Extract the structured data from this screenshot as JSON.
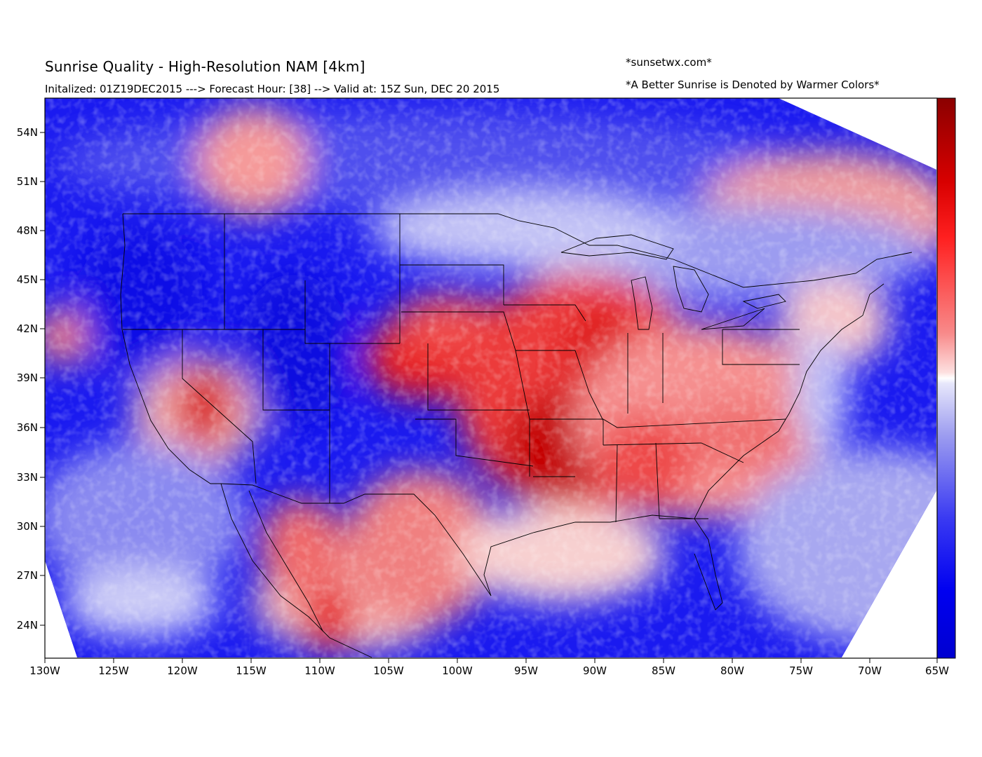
{
  "header": {
    "title": "Sunrise Quality - High-Resolution NAM [4km]",
    "subtitle": "Initalized: 01Z19DEC2015 ---> Forecast Hour: [38] --> Valid at: 15Z Sun, DEC 20 2015",
    "site": "*sunsetwx.com*",
    "note": "*A Better Sunrise is Denoted by Warmer Colors*"
  },
  "axes": {
    "lon_labels": [
      "130W",
      "125W",
      "120W",
      "115W",
      "110W",
      "105W",
      "100W",
      "95W",
      "90W",
      "85W",
      "80W",
      "75W",
      "70W",
      "65W"
    ],
    "lat_labels": [
      "54N",
      "51N",
      "48N",
      "45N",
      "42N",
      "39N",
      "36N",
      "33N",
      "30N",
      "27N",
      "24N"
    ]
  },
  "colors": {
    "warm_dark": "#a00000",
    "warm": "#ee1111",
    "warm_light": "#f6a0a0",
    "neutral": "#ffffff",
    "cool_light": "#a8a8f0",
    "cool": "#2222ee",
    "cool_dark": "#0000cc"
  }
}
